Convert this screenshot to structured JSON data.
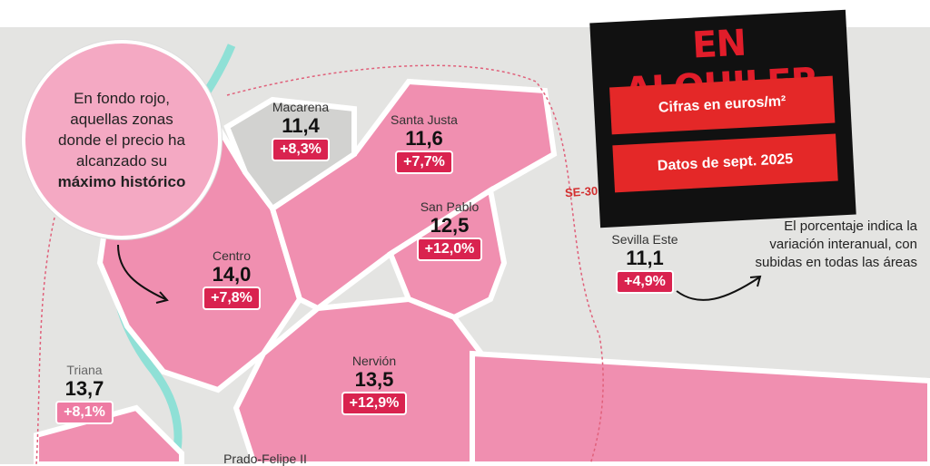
{
  "title": "EN ALQUILER",
  "tags": [
    "Cifras en euros/m²",
    "Datos de sept. 2025"
  ],
  "callout": {
    "text": "En fondo rojo, aquellas zonas donde el precio ha alcanzado su",
    "bold": "máximo histórico"
  },
  "note": "El porcentaje indica la variación interanual, con subidas en todas las áreas",
  "road_label": "SE-30",
  "zones": [
    {
      "name": "Macarena",
      "value": "11,4",
      "change": "+8,3%",
      "record": false
    },
    {
      "name": "Santa Justa",
      "value": "11,6",
      "change": "+7,7%",
      "record": true
    },
    {
      "name": "San Pablo",
      "value": "12,5",
      "change": "+12,0%",
      "record": true
    },
    {
      "name": "Centro",
      "value": "14,0",
      "change": "+7,8%",
      "record": true
    },
    {
      "name": "Sevilla Este",
      "value": "11,1",
      "change": "+4,9%",
      "record": false
    },
    {
      "name": "Nervión",
      "value": "13,5",
      "change": "+12,9%",
      "record": true
    },
    {
      "name": "Triana",
      "value": "13,7",
      "change": "+8,1%",
      "record": false
    },
    {
      "name": "Prado-Felipe II",
      "value": "",
      "change": "",
      "record": true
    }
  ],
  "colors": {
    "record_fill": "#f08fb0",
    "badge_red": "#d9234f",
    "badge_pink": "#ee7ba3",
    "title_red": "#e11d2a"
  }
}
